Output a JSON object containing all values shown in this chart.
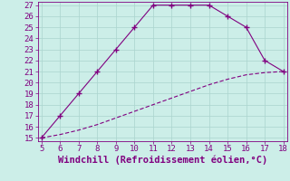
{
  "xlabel": "Windchill (Refroidissement éolien,°C)",
  "x_upper": [
    5,
    6,
    7,
    8,
    9,
    10,
    11,
    12,
    13,
    14,
    15,
    16,
    17,
    18
  ],
  "y_upper": [
    15,
    17,
    19,
    21,
    23,
    25,
    27,
    27,
    27,
    27,
    26,
    25,
    22,
    21
  ],
  "x_lower": [
    5,
    6,
    7,
    8,
    9,
    10,
    11,
    12,
    13,
    14,
    15,
    16,
    17,
    18
  ],
  "y_lower": [
    15,
    15.3,
    15.7,
    16.2,
    16.8,
    17.4,
    18.0,
    18.6,
    19.2,
    19.8,
    20.3,
    20.7,
    20.9,
    21.0
  ],
  "line_color": "#800080",
  "bg_color": "#cceee8",
  "grid_color": "#aad4ce",
  "xlim": [
    5,
    18
  ],
  "ylim": [
    15,
    27
  ],
  "xticks": [
    5,
    6,
    7,
    8,
    9,
    10,
    11,
    12,
    13,
    14,
    15,
    16,
    17,
    18
  ],
  "yticks": [
    15,
    16,
    17,
    18,
    19,
    20,
    21,
    22,
    23,
    24,
    25,
    26,
    27
  ],
  "tick_color": "#800080",
  "label_color": "#800080",
  "xlabel_fontsize": 7.5,
  "tick_fontsize": 6.5
}
